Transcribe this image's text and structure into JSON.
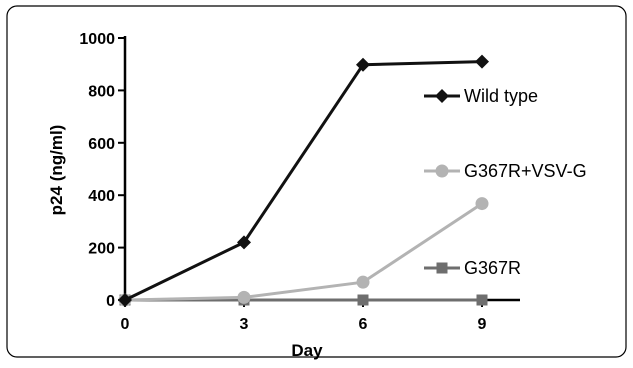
{
  "chart_data": {
    "type": "line",
    "title": "",
    "xlabel": "Day",
    "ylabel": "p24 (ng/ml)",
    "xlim": [
      0,
      9
    ],
    "ylim": [
      0,
      1000
    ],
    "xticks": [
      "0",
      "3",
      "6",
      "9"
    ],
    "yticks": [
      "0",
      "200",
      "400",
      "600",
      "800",
      "1000"
    ],
    "grid": false,
    "legend_position": "right",
    "x": [
      0,
      3,
      6,
      9
    ],
    "series": [
      {
        "name": "Wild type",
        "values": [
          0,
          220,
          898,
          910
        ],
        "color": "#111111",
        "marker": "diamond"
      },
      {
        "name": "G367R+VSV-G",
        "values": [
          0,
          10,
          68,
          368
        ],
        "color": "#b3b3b3",
        "marker": "circle"
      },
      {
        "name": "G367R",
        "values": [
          0,
          0,
          0,
          0
        ],
        "color": "#6e6e6e",
        "marker": "square"
      }
    ]
  }
}
